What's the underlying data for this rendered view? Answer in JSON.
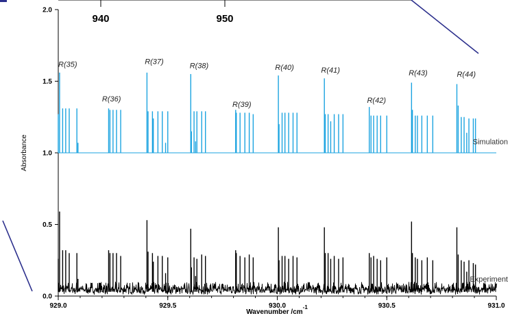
{
  "chart_data": {
    "type": "line",
    "xlabel": "Wavenumber /cm",
    "xlabel_superscript": "-1",
    "ylabel": "Absorbance",
    "xlim": [
      929.0,
      931.0
    ],
    "ylim": [
      0.0,
      2.0
    ],
    "x_ticks": [
      {
        "value": 929.0,
        "label": "929.0"
      },
      {
        "value": 929.5,
        "label": "929.5"
      },
      {
        "value": 930.0,
        "label": "930.0"
      },
      {
        "value": 930.5,
        "label": "930.5"
      },
      {
        "value": 931.0,
        "label": "931.0"
      }
    ],
    "y_ticks": [
      {
        "value": 0.0,
        "label": "0.0"
      },
      {
        "value": 0.5,
        "label": "0.5"
      },
      {
        "value": 1.0,
        "label": "1.0"
      },
      {
        "value": 1.5,
        "label": "1.5"
      },
      {
        "value": 2.0,
        "label": "2.0"
      }
    ],
    "inset_axis_ticks": [
      {
        "label": "940"
      },
      {
        "label": "950"
      }
    ],
    "series": [
      {
        "name": "Simulation",
        "color": "#1aa3e0",
        "baseline": 1.0,
        "peaks": [
          [
            929.0,
            1.27
          ],
          [
            929.006,
            1.56
          ],
          [
            929.02,
            1.31
          ],
          [
            929.034,
            1.31
          ],
          [
            929.05,
            1.31
          ],
          [
            929.085,
            1.31
          ],
          [
            929.09,
            1.07
          ],
          [
            929.23,
            1.31
          ],
          [
            929.236,
            1.3
          ],
          [
            929.25,
            1.3
          ],
          [
            929.266,
            1.3
          ],
          [
            929.285,
            1.3
          ],
          [
            929.405,
            1.56
          ],
          [
            929.41,
            1.29
          ],
          [
            929.43,
            1.29
          ],
          [
            929.434,
            1.24
          ],
          [
            929.455,
            1.29
          ],
          [
            929.475,
            1.29
          ],
          [
            929.49,
            1.07
          ],
          [
            929.5,
            1.29
          ],
          [
            929.605,
            1.55
          ],
          [
            929.608,
            1.15
          ],
          [
            929.62,
            1.29
          ],
          [
            929.627,
            1.08
          ],
          [
            929.633,
            1.29
          ],
          [
            929.655,
            1.29
          ],
          [
            929.672,
            1.29
          ],
          [
            929.81,
            1.3
          ],
          [
            929.813,
            1.28
          ],
          [
            929.83,
            1.28
          ],
          [
            929.852,
            1.28
          ],
          [
            929.872,
            1.28
          ],
          [
            929.89,
            1.27
          ],
          [
            930.005,
            1.54
          ],
          [
            930.008,
            1.2
          ],
          [
            930.022,
            1.28
          ],
          [
            930.035,
            1.28
          ],
          [
            930.052,
            1.28
          ],
          [
            930.072,
            1.28
          ],
          [
            930.09,
            1.28
          ],
          [
            930.215,
            1.52
          ],
          [
            930.219,
            1.27
          ],
          [
            930.232,
            1.27
          ],
          [
            930.244,
            1.22
          ],
          [
            930.26,
            1.27
          ],
          [
            930.28,
            1.27
          ],
          [
            930.3,
            1.27
          ],
          [
            930.42,
            1.32
          ],
          [
            930.428,
            1.26
          ],
          [
            930.44,
            1.26
          ],
          [
            930.456,
            1.26
          ],
          [
            930.472,
            1.26
          ],
          [
            930.5,
            1.26
          ],
          [
            930.613,
            1.49
          ],
          [
            930.617,
            1.3
          ],
          [
            930.63,
            1.26
          ],
          [
            930.64,
            1.26
          ],
          [
            930.66,
            1.26
          ],
          [
            930.685,
            1.26
          ],
          [
            930.71,
            1.26
          ],
          [
            930.82,
            1.48
          ],
          [
            930.826,
            1.33
          ],
          [
            930.84,
            1.25
          ],
          [
            930.853,
            1.25
          ],
          [
            930.865,
            1.14
          ],
          [
            930.875,
            1.24
          ],
          [
            930.895,
            1.24
          ],
          [
            930.905,
            1.24
          ]
        ]
      },
      {
        "name": "Experiment",
        "color": "#000000",
        "baseline": 0.03,
        "peaks": [
          [
            929.0,
            0.26
          ],
          [
            929.006,
            0.59
          ],
          [
            929.02,
            0.32
          ],
          [
            929.034,
            0.32
          ],
          [
            929.05,
            0.3
          ],
          [
            929.085,
            0.3
          ],
          [
            929.09,
            0.12
          ],
          [
            929.23,
            0.32
          ],
          [
            929.236,
            0.3
          ],
          [
            929.25,
            0.3
          ],
          [
            929.266,
            0.3
          ],
          [
            929.285,
            0.28
          ],
          [
            929.405,
            0.53
          ],
          [
            929.41,
            0.31
          ],
          [
            929.43,
            0.3
          ],
          [
            929.434,
            0.24
          ],
          [
            929.455,
            0.28
          ],
          [
            929.475,
            0.28
          ],
          [
            929.49,
            0.16
          ],
          [
            929.5,
            0.27
          ],
          [
            929.605,
            0.47
          ],
          [
            929.608,
            0.2
          ],
          [
            929.62,
            0.27
          ],
          [
            929.627,
            0.14
          ],
          [
            929.633,
            0.26
          ],
          [
            929.655,
            0.29
          ],
          [
            929.672,
            0.28
          ],
          [
            929.81,
            0.32
          ],
          [
            929.813,
            0.3
          ],
          [
            929.83,
            0.28
          ],
          [
            929.852,
            0.27
          ],
          [
            929.872,
            0.29
          ],
          [
            929.89,
            0.27
          ],
          [
            930.005,
            0.48
          ],
          [
            930.008,
            0.25
          ],
          [
            930.022,
            0.28
          ],
          [
            930.035,
            0.28
          ],
          [
            930.052,
            0.26
          ],
          [
            930.072,
            0.28
          ],
          [
            930.09,
            0.27
          ],
          [
            930.215,
            0.48
          ],
          [
            930.219,
            0.3
          ],
          [
            930.232,
            0.3
          ],
          [
            930.244,
            0.26
          ],
          [
            930.26,
            0.28
          ],
          [
            930.28,
            0.26
          ],
          [
            930.3,
            0.27
          ],
          [
            930.42,
            0.3
          ],
          [
            930.428,
            0.27
          ],
          [
            930.44,
            0.28
          ],
          [
            930.456,
            0.26
          ],
          [
            930.472,
            0.25
          ],
          [
            930.5,
            0.27
          ],
          [
            930.613,
            0.52
          ],
          [
            930.617,
            0.3
          ],
          [
            930.63,
            0.27
          ],
          [
            930.64,
            0.26
          ],
          [
            930.66,
            0.25
          ],
          [
            930.685,
            0.27
          ],
          [
            930.71,
            0.25
          ],
          [
            930.82,
            0.48
          ],
          [
            930.826,
            0.29
          ],
          [
            930.84,
            0.25
          ],
          [
            930.853,
            0.24
          ],
          [
            930.865,
            0.17
          ],
          [
            930.875,
            0.25
          ],
          [
            930.895,
            0.23
          ],
          [
            930.905,
            0.22
          ]
        ]
      }
    ],
    "annotations": [
      {
        "text": "R(35)",
        "x": 929.0,
        "y": 1.6
      },
      {
        "text": "R(36)",
        "x": 929.2,
        "y": 1.36
      },
      {
        "text": "R(37)",
        "x": 929.395,
        "y": 1.62
      },
      {
        "text": "R(38)",
        "x": 929.6,
        "y": 1.59
      },
      {
        "text": "R(39)",
        "x": 929.795,
        "y": 1.32
      },
      {
        "text": "R(40)",
        "x": 929.99,
        "y": 1.58
      },
      {
        "text": "R(41)",
        "x": 930.2,
        "y": 1.56
      },
      {
        "text": "R(42)",
        "x": 930.41,
        "y": 1.35
      },
      {
        "text": "R(43)",
        "x": 930.6,
        "y": 1.54
      },
      {
        "text": "R(44)",
        "x": 930.82,
        "y": 1.53
      }
    ],
    "grid": false,
    "legend": "inline-right"
  }
}
